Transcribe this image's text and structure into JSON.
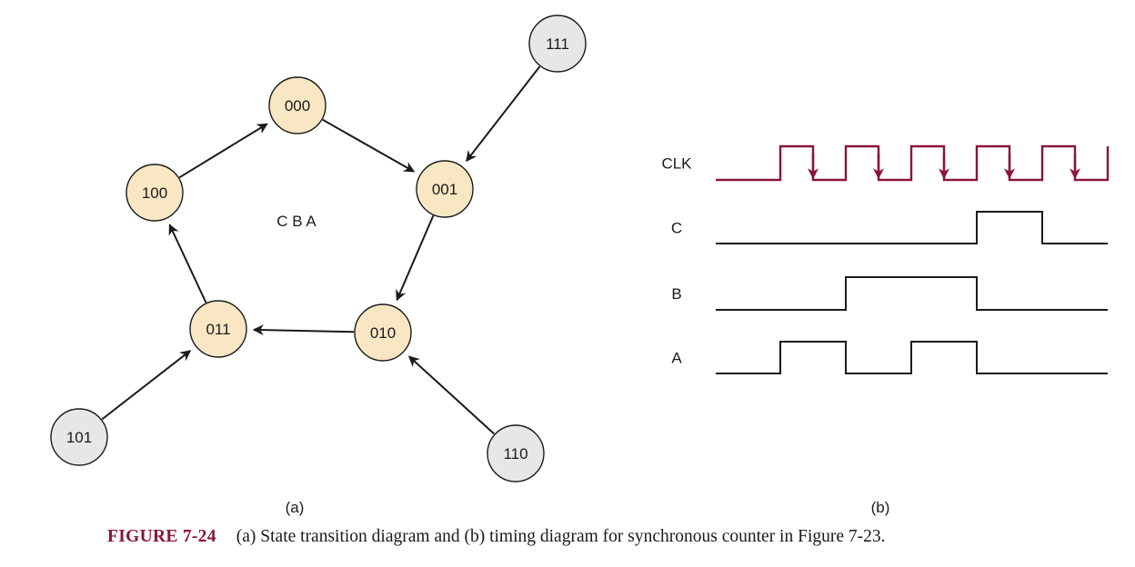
{
  "state_diagram": {
    "center_label": "C B A",
    "sublabel": "(a)",
    "main_states": [
      "000",
      "001",
      "010",
      "011",
      "100"
    ],
    "unused_states": [
      "101",
      "110",
      "111"
    ],
    "transitions": [
      {
        "from": "000",
        "to": "001"
      },
      {
        "from": "001",
        "to": "010"
      },
      {
        "from": "010",
        "to": "011"
      },
      {
        "from": "011",
        "to": "100"
      },
      {
        "from": "100",
        "to": "000"
      },
      {
        "from": "111",
        "to": "001"
      },
      {
        "from": "110",
        "to": "010"
      },
      {
        "from": "101",
        "to": "011"
      }
    ],
    "colors": {
      "main_fill": "#f9e7c4",
      "unused_fill": "#e6e7e9",
      "stroke": "#1a1a1a"
    }
  },
  "timing_diagram": {
    "sublabel": "(b)",
    "clock_color": "#8a1538",
    "signals": [
      {
        "name": "CLK",
        "levels": [
          0,
          1,
          0,
          1,
          0,
          1,
          0,
          1,
          0,
          1,
          0,
          1
        ],
        "is_clock": true
      },
      {
        "name": "C",
        "levels": [
          0,
          0,
          0,
          0,
          1,
          0
        ],
        "is_clock": false
      },
      {
        "name": "B",
        "levels": [
          0,
          0,
          1,
          1,
          0,
          0
        ],
        "is_clock": false
      },
      {
        "name": "A",
        "levels": [
          0,
          1,
          0,
          1,
          0,
          0
        ],
        "is_clock": false
      }
    ]
  },
  "caption": {
    "number": "FIGURE 7-24",
    "text": "(a) State transition diagram and (b) timing diagram for synchronous counter in Figure 7-23."
  }
}
